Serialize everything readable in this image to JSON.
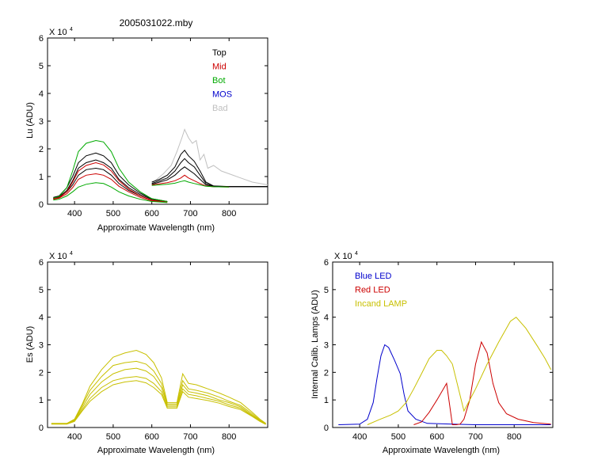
{
  "title": "2005031022.mby",
  "chart_data": [
    {
      "type": "line",
      "id": "lu",
      "ylabel": "Lu (ADU)",
      "xlabel": "Approximate Wavelength (nm)",
      "y_multiplier": "X 10",
      "y_exponent": "4",
      "xlim": [
        330,
        900
      ],
      "ylim": [
        0,
        6
      ],
      "xticks": [
        400,
        500,
        600,
        700,
        800
      ],
      "yticks": [
        0,
        1,
        2,
        3,
        4,
        5,
        6
      ],
      "legend": {
        "placement": "top-right",
        "entries": [
          {
            "name": "Top",
            "color": "#000000"
          },
          {
            "name": "Mid",
            "color": "#cc0000"
          },
          {
            "name": "Bot",
            "color": "#00aa00"
          },
          {
            "name": "MOS",
            "color": "#0000cc"
          },
          {
            "name": "Bad",
            "color": "#c0c0c0"
          }
        ]
      },
      "series": [
        {
          "name": "Bad",
          "color": "#c0c0c0",
          "x": [
            600,
            630,
            650,
            665,
            678,
            685,
            695,
            705,
            715,
            725,
            735,
            745,
            760,
            780,
            800,
            830,
            860,
            900
          ],
          "y": [
            0.75,
            1.1,
            1.4,
            1.9,
            2.4,
            2.7,
            2.4,
            2.2,
            2.3,
            1.6,
            1.8,
            1.3,
            1.4,
            1.2,
            1.1,
            0.95,
            0.8,
            0.7
          ]
        },
        {
          "name": "Top",
          "color": "#000000",
          "x": [
            345,
            360,
            380,
            395,
            410,
            430,
            455,
            475,
            495,
            515,
            540,
            570,
            600,
            640
          ],
          "y": [
            0.25,
            0.3,
            0.6,
            1.0,
            1.5,
            1.75,
            1.85,
            1.75,
            1.5,
            1.05,
            0.7,
            0.4,
            0.2,
            0.1
          ]
        },
        {
          "name": "Top",
          "color": "#000000",
          "x": [
            345,
            360,
            380,
            395,
            410,
            430,
            455,
            475,
            495,
            515,
            540,
            570,
            600,
            640
          ],
          "y": [
            0.22,
            0.27,
            0.5,
            0.85,
            1.3,
            1.5,
            1.6,
            1.5,
            1.3,
            0.9,
            0.6,
            0.35,
            0.18,
            0.1
          ]
        },
        {
          "name": "Top",
          "color": "#000000",
          "x": [
            345,
            360,
            380,
            395,
            410,
            430,
            455,
            475,
            495,
            515,
            540,
            570,
            600,
            640
          ],
          "y": [
            0.2,
            0.25,
            0.45,
            0.7,
            1.05,
            1.25,
            1.3,
            1.25,
            1.05,
            0.75,
            0.5,
            0.3,
            0.15,
            0.1
          ]
        },
        {
          "name": "Top",
          "color": "#000000",
          "x": [
            600,
            620,
            640,
            660,
            675,
            685,
            695,
            710,
            725,
            740,
            760,
            800,
            850,
            900
          ],
          "y": [
            0.8,
            0.9,
            1.05,
            1.35,
            1.8,
            1.95,
            1.75,
            1.55,
            1.2,
            0.8,
            0.66,
            0.64,
            0.64,
            0.64
          ]
        },
        {
          "name": "Top",
          "color": "#000000",
          "x": [
            600,
            620,
            640,
            660,
            675,
            685,
            695,
            710,
            725,
            740,
            760,
            800,
            850,
            900
          ],
          "y": [
            0.75,
            0.85,
            0.95,
            1.2,
            1.5,
            1.65,
            1.5,
            1.35,
            1.05,
            0.75,
            0.65,
            0.64,
            0.64,
            0.64
          ]
        },
        {
          "name": "Top",
          "color": "#000000",
          "x": [
            600,
            620,
            640,
            660,
            675,
            685,
            695,
            710,
            725,
            740,
            760,
            800,
            850,
            900
          ],
          "y": [
            0.72,
            0.8,
            0.88,
            1.05,
            1.25,
            1.35,
            1.25,
            1.1,
            0.9,
            0.7,
            0.64,
            0.63,
            0.63,
            0.63
          ]
        },
        {
          "name": "Mid",
          "color": "#cc0000",
          "x": [
            345,
            360,
            380,
            395,
            410,
            430,
            455,
            475,
            495,
            515,
            540,
            570,
            600,
            640
          ],
          "y": [
            0.2,
            0.24,
            0.45,
            0.8,
            1.2,
            1.4,
            1.5,
            1.42,
            1.2,
            0.85,
            0.55,
            0.3,
            0.15,
            0.08
          ]
        },
        {
          "name": "Mid",
          "color": "#cc0000",
          "x": [
            345,
            360,
            380,
            395,
            410,
            430,
            455,
            475,
            495,
            515,
            540,
            570,
            600,
            640
          ],
          "y": [
            0.18,
            0.22,
            0.38,
            0.6,
            0.9,
            1.05,
            1.1,
            1.05,
            0.9,
            0.65,
            0.45,
            0.25,
            0.12,
            0.07
          ]
        },
        {
          "name": "Mid",
          "color": "#cc0000",
          "x": [
            600,
            620,
            640,
            660,
            675,
            685,
            695,
            710,
            725,
            740,
            760,
            800
          ],
          "y": [
            0.7,
            0.74,
            0.78,
            0.85,
            0.95,
            1.05,
            0.95,
            0.85,
            0.75,
            0.66,
            0.63,
            0.62
          ]
        },
        {
          "name": "Bot",
          "color": "#00aa00",
          "x": [
            345,
            360,
            380,
            395,
            410,
            430,
            455,
            475,
            495,
            515,
            540,
            570,
            600,
            640
          ],
          "y": [
            0.22,
            0.28,
            0.6,
            1.2,
            1.9,
            2.2,
            2.3,
            2.25,
            1.9,
            1.3,
            0.8,
            0.45,
            0.2,
            0.1
          ]
        },
        {
          "name": "Bot",
          "color": "#00aa00",
          "x": [
            345,
            360,
            380,
            395,
            410,
            430,
            455,
            475,
            495,
            515,
            540,
            570,
            600,
            640
          ],
          "y": [
            0.15,
            0.18,
            0.3,
            0.45,
            0.62,
            0.72,
            0.78,
            0.75,
            0.62,
            0.45,
            0.3,
            0.18,
            0.1,
            0.06
          ]
        },
        {
          "name": "Bot",
          "color": "#00aa00",
          "x": [
            600,
            620,
            640,
            660,
            675,
            685,
            695,
            710,
            725,
            740,
            760,
            800
          ],
          "y": [
            0.68,
            0.7,
            0.72,
            0.76,
            0.82,
            0.85,
            0.8,
            0.75,
            0.7,
            0.65,
            0.63,
            0.62
          ]
        }
      ]
    },
    {
      "type": "line",
      "id": "es",
      "ylabel": "Es (ADU)",
      "xlabel": "Approximate Wavelength (nm)",
      "y_multiplier": "X 10",
      "y_exponent": "4",
      "xlim": [
        330,
        900
      ],
      "ylim": [
        0,
        6
      ],
      "xticks": [
        400,
        500,
        600,
        700,
        800
      ],
      "yticks": [
        0,
        1,
        2,
        3,
        4,
        5,
        6
      ],
      "series": [
        {
          "color": "#c8c000",
          "x": [
            340,
            380,
            400,
            420,
            440,
            470,
            500,
            530,
            560,
            585,
            605,
            625,
            640,
            665,
            680,
            695,
            715,
            745,
            775,
            800,
            830,
            860,
            880,
            895
          ],
          "y": [
            0.15,
            0.15,
            0.3,
            0.85,
            1.5,
            2.1,
            2.55,
            2.7,
            2.8,
            2.65,
            2.35,
            1.8,
            0.9,
            0.9,
            1.95,
            1.6,
            1.55,
            1.4,
            1.25,
            1.1,
            0.9,
            0.55,
            0.3,
            0.15
          ]
        },
        {
          "color": "#c8c000",
          "x": [
            340,
            380,
            400,
            420,
            440,
            470,
            500,
            530,
            560,
            585,
            605,
            625,
            640,
            665,
            680,
            695,
            715,
            745,
            775,
            800,
            830,
            860,
            880,
            895
          ],
          "y": [
            0.14,
            0.14,
            0.28,
            0.8,
            1.35,
            1.85,
            2.25,
            2.35,
            2.4,
            2.3,
            2.05,
            1.6,
            0.85,
            0.85,
            1.7,
            1.4,
            1.35,
            1.25,
            1.1,
            0.95,
            0.8,
            0.5,
            0.27,
            0.14
          ]
        },
        {
          "color": "#c8c000",
          "x": [
            340,
            380,
            400,
            420,
            440,
            470,
            500,
            530,
            560,
            585,
            605,
            625,
            640,
            665,
            680,
            695,
            715,
            745,
            775,
            800,
            830,
            860,
            880,
            895
          ],
          "y": [
            0.14,
            0.14,
            0.26,
            0.72,
            1.2,
            1.65,
            1.95,
            2.1,
            2.15,
            2.05,
            1.85,
            1.45,
            0.8,
            0.8,
            1.55,
            1.3,
            1.25,
            1.15,
            1.0,
            0.9,
            0.75,
            0.45,
            0.25,
            0.13
          ]
        },
        {
          "color": "#c8c000",
          "x": [
            340,
            380,
            400,
            420,
            440,
            470,
            500,
            530,
            560,
            585,
            605,
            625,
            640,
            665,
            680,
            695,
            715,
            745,
            775,
            800,
            830,
            860,
            880,
            895
          ],
          "y": [
            0.13,
            0.13,
            0.24,
            0.65,
            1.05,
            1.45,
            1.7,
            1.8,
            1.85,
            1.78,
            1.6,
            1.3,
            0.75,
            0.75,
            1.4,
            1.2,
            1.15,
            1.05,
            0.95,
            0.82,
            0.7,
            0.42,
            0.23,
            0.12
          ]
        },
        {
          "color": "#c8c000",
          "x": [
            340,
            380,
            400,
            420,
            440,
            470,
            500,
            530,
            560,
            585,
            605,
            625,
            640,
            665,
            680,
            695,
            715,
            745,
            775,
            800,
            830,
            860,
            880,
            895
          ],
          "y": [
            0.12,
            0.12,
            0.22,
            0.6,
            0.95,
            1.3,
            1.55,
            1.65,
            1.7,
            1.62,
            1.45,
            1.2,
            0.7,
            0.7,
            1.3,
            1.1,
            1.05,
            0.98,
            0.88,
            0.76,
            0.65,
            0.4,
            0.22,
            0.11
          ]
        }
      ]
    },
    {
      "type": "line",
      "id": "calib",
      "ylabel": "Internal Calib. Lamps (ADU)",
      "xlabel": "Approximate Wavelength (nm)",
      "y_multiplier": "X 10",
      "y_exponent": "4",
      "xlim": [
        330,
        900
      ],
      "ylim": [
        0,
        6
      ],
      "xticks": [
        400,
        500,
        600,
        700,
        800
      ],
      "yticks": [
        0,
        1,
        2,
        3,
        4,
        5,
        6
      ],
      "legend": {
        "placement": "top-left",
        "entries": [
          {
            "name": "Blue LED",
            "color": "#0000cc"
          },
          {
            "name": "Red LED",
            "color": "#cc0000"
          },
          {
            "name": "Incand LAMP",
            "color": "#c8c000"
          }
        ]
      },
      "series": [
        {
          "name": "Blue LED",
          "color": "#0000cc",
          "x": [
            345,
            400,
            420,
            435,
            445,
            455,
            465,
            475,
            490,
            505,
            515,
            525,
            545,
            575,
            640,
            700,
            800,
            895
          ],
          "y": [
            0.1,
            0.12,
            0.3,
            0.9,
            1.8,
            2.6,
            3.0,
            2.9,
            2.45,
            1.95,
            1.2,
            0.6,
            0.3,
            0.15,
            0.12,
            0.1,
            0.1,
            0.1
          ]
        },
        {
          "name": "Red LED",
          "color": "#cc0000",
          "x": [
            540,
            560,
            580,
            600,
            625,
            640,
            650,
            660,
            670,
            685,
            700,
            715,
            730,
            745,
            760,
            780,
            810,
            850,
            895
          ],
          "y": [
            0.1,
            0.2,
            0.55,
            1.0,
            1.6,
            0.1,
            0.1,
            0.12,
            0.3,
            1.0,
            2.3,
            3.1,
            2.7,
            1.6,
            0.9,
            0.5,
            0.3,
            0.18,
            0.12
          ]
        },
        {
          "name": "Incand LAMP",
          "color": "#c8c000",
          "x": [
            420,
            450,
            480,
            500,
            520,
            540,
            560,
            580,
            600,
            612,
            625,
            640,
            670,
            700,
            730,
            760,
            790,
            805,
            830,
            860,
            880,
            895
          ],
          "y": [
            0.1,
            0.28,
            0.45,
            0.6,
            0.9,
            1.4,
            1.95,
            2.5,
            2.8,
            2.8,
            2.6,
            2.3,
            0.6,
            1.4,
            2.3,
            3.1,
            3.85,
            4.0,
            3.6,
            2.95,
            2.5,
            2.1
          ]
        }
      ]
    }
  ]
}
